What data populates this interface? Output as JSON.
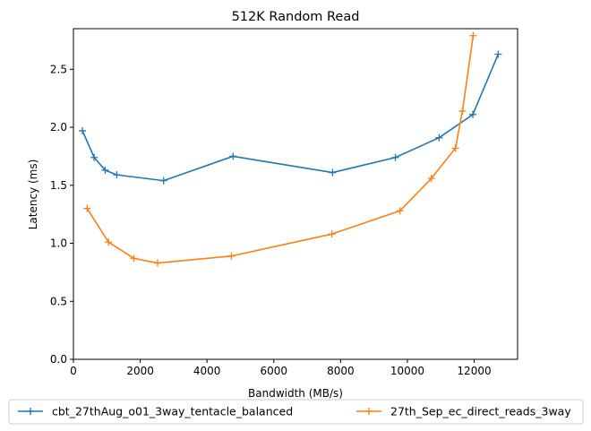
{
  "chart_data": {
    "type": "line",
    "title": "512K  Random Read",
    "xlabel": "Bandwidth (MB/s)",
    "ylabel": "Latency (ms)",
    "xlim": [
      0,
      13300
    ],
    "ylim": [
      0,
      2.85
    ],
    "xticks": [
      0,
      2000,
      4000,
      6000,
      8000,
      10000,
      12000
    ],
    "yticks": [
      0.0,
      0.5,
      1.0,
      1.5,
      2.0,
      2.5
    ],
    "xtick_labels": [
      "0",
      "2000",
      "4000",
      "6000",
      "8000",
      "10000",
      "12000"
    ],
    "ytick_labels": [
      "0.0",
      "0.5",
      "1.0",
      "1.5",
      "2.0",
      "2.5"
    ],
    "grid": false,
    "legend_position": "bottom-center",
    "marker": "+",
    "series": [
      {
        "name": "cbt_27thAug_o01_3way_tentacle_balanced",
        "color": "#1f77b4",
        "x": [
          270,
          620,
          950,
          1300,
          2700,
          4780,
          7760,
          9640,
          10950,
          11960,
          12720
        ],
        "y": [
          1.97,
          1.74,
          1.63,
          1.59,
          1.54,
          1.75,
          1.61,
          1.74,
          1.91,
          2.11,
          2.63
        ]
      },
      {
        "name": "27th_Sep_ec_direct_reads_3way",
        "color": "#ff7f0e",
        "x": [
          410,
          1050,
          1810,
          2520,
          4730,
          7740,
          9780,
          10720,
          11440,
          11650,
          11970
        ],
        "y": [
          1.3,
          1.01,
          0.87,
          0.83,
          0.89,
          1.08,
          1.28,
          1.56,
          1.82,
          2.14,
          2.79
        ]
      }
    ]
  }
}
